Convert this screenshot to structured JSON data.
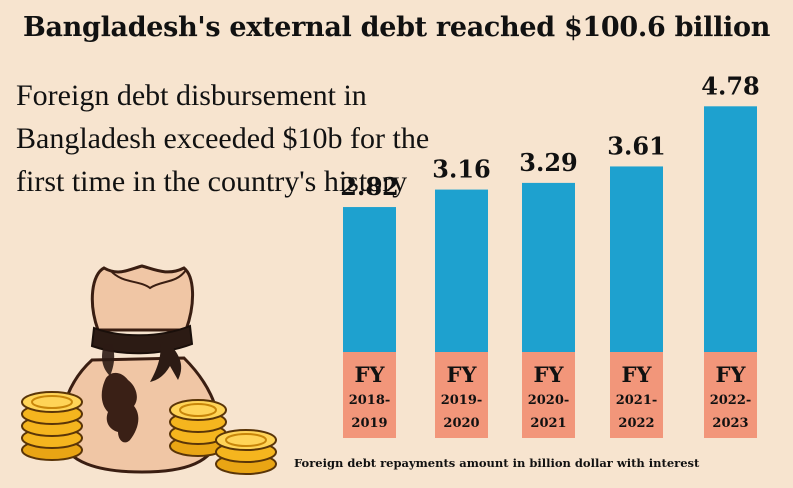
{
  "headline": "Bangladesh's external debt reached $100.6 billion",
  "subheading": "Foreign debt disbursement in Bangladesh exceeded $10b for the first time in the country's history",
  "footnote": "Foreign debt repayments amount in billion dollar with interest",
  "colors": {
    "background": "#f7e4cf",
    "bar": "#1ea1cf",
    "label_box": "#f2967a",
    "bag": "#f0c6a5",
    "coin": "#f5b51e"
  },
  "chart_data": {
    "type": "bar",
    "categories": [
      "FY 2018-2019",
      "FY 2019-2020",
      "FY 2020-2021",
      "FY 2021-2022",
      "FY 2022-2023"
    ],
    "category_lines": [
      [
        "FY",
        "2018-",
        "2019"
      ],
      [
        "FY",
        "2019-",
        "2020"
      ],
      [
        "FY",
        "2020-",
        "2021"
      ],
      [
        "FY",
        "2021-",
        "2022"
      ],
      [
        "FY",
        "2022-",
        "2023"
      ]
    ],
    "values": [
      2.82,
      3.16,
      3.29,
      3.61,
      4.78
    ],
    "value_labels": [
      "2.82",
      "3.16",
      "3.29",
      "3.61",
      "4.78"
    ],
    "xlabel": "",
    "ylabel": "",
    "grid": false
  }
}
